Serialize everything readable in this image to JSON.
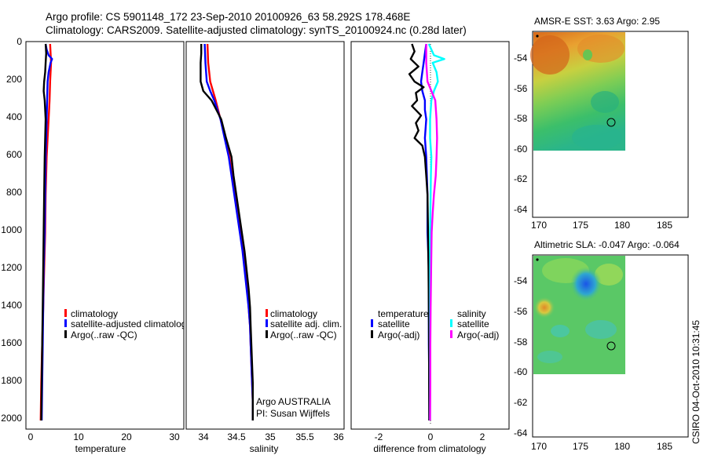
{
  "header": {
    "title_line1": "Argo profile: CS 5901148_172 23-Sep-2010 20100926_63 58.292S 178.468E",
    "title_line2": "Climatology: CARS2009. Satellite-adjusted climatology: synTS_20100924.nc (0.28d later)"
  },
  "colors": {
    "climatology": "#ff0000",
    "satellite": "#0000ff",
    "argo": "#000000",
    "sal_satellite": "#00ffff",
    "sal_argo": "#ff00ff"
  },
  "footer": {
    "stamp": "CSIRO 04-Oct-2010 10:31:45"
  },
  "chart_data": [
    {
      "id": "temperature",
      "type": "line",
      "xlabel": "temperature",
      "xlim": [
        -1,
        31
      ],
      "xticks": [
        0,
        10,
        20,
        30
      ],
      "ylim": [
        0,
        2000
      ],
      "yticks": [
        0,
        200,
        400,
        600,
        800,
        1000,
        1200,
        1400,
        1600,
        1800,
        2000
      ],
      "y_inverted": true,
      "legend": [
        {
          "label": "climatology",
          "color": "#ff0000"
        },
        {
          "label": "satellite-adjusted climatology",
          "color": "#0000ff"
        },
        {
          "label": "Argo(..raw -QC)",
          "color": "#000000"
        }
      ],
      "series": [
        {
          "name": "climatology",
          "color": "#ff0000",
          "depth": [
            0,
            50,
            100,
            150,
            200,
            300,
            400,
            500,
            600,
            800,
            1000,
            1200,
            1400,
            1600,
            1800,
            2000
          ],
          "values": [
            3.9,
            4.0,
            4.1,
            4.0,
            3.9,
            3.8,
            3.6,
            3.4,
            3.2,
            3.0,
            2.9,
            2.7,
            2.5,
            2.3,
            2.1,
            2.0
          ]
        },
        {
          "name": "satellite",
          "color": "#0000ff",
          "depth": [
            0,
            30,
            60,
            80,
            100,
            150,
            200,
            300,
            400,
            500,
            600,
            800,
            1000,
            1200,
            1400,
            1600,
            1800,
            2000
          ],
          "values": [
            3.0,
            3.2,
            3.6,
            4.3,
            4.0,
            3.6,
            3.4,
            3.3,
            3.2,
            3.1,
            3.0,
            2.9,
            2.8,
            2.6,
            2.5,
            2.4,
            2.3,
            2.2
          ]
        },
        {
          "name": "Argo",
          "color": "#000000",
          "depth": [
            0,
            50,
            100,
            150,
            200,
            250,
            300,
            400,
            500,
            600,
            800,
            1000,
            1200,
            1400,
            1600,
            1800,
            2000
          ],
          "values": [
            3.0,
            3.1,
            3.0,
            2.9,
            2.7,
            2.6,
            2.8,
            3.0,
            2.9,
            2.8,
            2.7,
            2.6,
            2.5,
            2.4,
            2.3,
            2.2,
            2.1
          ]
        }
      ]
    },
    {
      "id": "salinity",
      "type": "line",
      "xlabel": "salinity",
      "xlim": [
        33.75,
        36.05
      ],
      "xticks": [
        34,
        34.5,
        35,
        35.5,
        36
      ],
      "ylim": [
        0,
        2000
      ],
      "y_inverted": true,
      "legend": [
        {
          "label": "climatology",
          "color": "#ff0000"
        },
        {
          "label": "satellite adj. clim.",
          "color": "#0000ff"
        },
        {
          "label": "Argo(..raw -QC)",
          "color": "#000000"
        }
      ],
      "annotation": [
        "Argo AUSTRALIA",
        "PI: Susan Wijffels"
      ],
      "series": [
        {
          "name": "climatology",
          "color": "#ff0000",
          "depth": [
            0,
            100,
            200,
            250,
            300,
            400,
            500,
            600,
            700,
            800,
            900,
            1000,
            1100,
            1200,
            1300,
            1400,
            1500,
            1600,
            1700,
            1800,
            1900,
            2000
          ],
          "values": [
            34.06,
            34.07,
            34.1,
            34.14,
            34.18,
            34.25,
            34.32,
            34.38,
            34.42,
            34.46,
            34.5,
            34.54,
            34.58,
            34.61,
            34.64,
            34.66,
            34.68,
            34.69,
            34.7,
            34.71,
            34.72,
            34.72
          ]
        },
        {
          "name": "satellite",
          "color": "#0000ff",
          "depth": [
            0,
            100,
            200,
            250,
            300,
            400,
            500,
            600,
            700,
            800,
            900,
            1000,
            1100,
            1200,
            1300,
            1400,
            1500,
            1600,
            1700,
            1800,
            1900,
            2000
          ],
          "values": [
            34.02,
            34.03,
            34.05,
            34.1,
            34.16,
            34.25,
            34.31,
            34.37,
            34.41,
            34.45,
            34.49,
            34.53,
            34.57,
            34.6,
            34.63,
            34.66,
            34.68,
            34.69,
            34.7,
            34.71,
            34.72,
            34.72
          ]
        },
        {
          "name": "Argo",
          "color": "#000000",
          "depth": [
            0,
            50,
            100,
            150,
            200,
            250,
            300,
            400,
            500,
            600,
            700,
            800,
            900,
            1000,
            1100,
            1200,
            1300,
            1400,
            1500,
            1600,
            1700,
            1800,
            1900,
            2000
          ],
          "values": [
            33.97,
            33.97,
            33.96,
            33.96,
            33.96,
            34.0,
            34.12,
            34.26,
            34.33,
            34.41,
            34.44,
            34.48,
            34.52,
            34.56,
            34.6,
            34.63,
            34.66,
            34.68,
            34.69,
            34.7,
            34.71,
            34.72,
            34.72,
            34.72
          ]
        }
      ]
    },
    {
      "id": "difference",
      "type": "line",
      "xlabel": "difference from climatology",
      "xlim": [
        -3.05,
        3.05
      ],
      "xticks": [
        -2,
        0,
        2
      ],
      "ylim": [
        0,
        2000
      ],
      "y_inverted": true,
      "legend": [
        {
          "label": "temperature",
          "color": null
        },
        {
          "label": "satellite",
          "color": "#0000ff"
        },
        {
          "label": "Argo(-adj)",
          "color": "#000000"
        },
        {
          "label": "salinity",
          "color": null
        },
        {
          "label": "satellite",
          "color": "#00ffff"
        },
        {
          "label": "Argo(-adj)",
          "color": "#ff00ff"
        }
      ],
      "series": [
        {
          "name": "temperature satellite",
          "color": "#0000ff",
          "depth": [
            0,
            50,
            100,
            150,
            200,
            250,
            300,
            350,
            400,
            500,
            600,
            800,
            1000,
            1200,
            1400,
            1600,
            1800,
            2000
          ],
          "values": [
            -0.15,
            -0.2,
            -0.25,
            -0.3,
            -0.35,
            -0.3,
            -0.2,
            -0.2,
            -0.15,
            -0.2,
            -0.15,
            -0.1,
            -0.1,
            -0.05,
            -0.05,
            -0.05,
            -0.03,
            -0.03
          ]
        },
        {
          "name": "temperature Argo",
          "color": "#000000",
          "depth": [
            0,
            40,
            80,
            120,
            160,
            200,
            230,
            260,
            300,
            330,
            380,
            420,
            460,
            500,
            540,
            600,
            700,
            800,
            1000,
            1200,
            1400,
            1600,
            1800,
            2000
          ],
          "values": [
            -0.7,
            -0.6,
            -0.75,
            -0.45,
            -0.8,
            -0.6,
            -0.25,
            -0.55,
            -0.5,
            -0.7,
            -0.35,
            -0.55,
            -0.45,
            -0.6,
            -0.3,
            -0.2,
            -0.15,
            -0.1,
            -0.08,
            -0.06,
            -0.05,
            -0.04,
            -0.04,
            -0.03
          ]
        },
        {
          "name": "salinity satellite",
          "color": "#00ffff",
          "depth": [
            0,
            60,
            80,
            100,
            150,
            200,
            250,
            300,
            400,
            500,
            600,
            700,
            800,
            1000,
            1200,
            1400,
            1600,
            1800,
            2000
          ],
          "values": [
            -0.05,
            0.15,
            0.55,
            0.1,
            0.25,
            0.3,
            0.15,
            0.05,
            0.0,
            0.0,
            0.05,
            0.03,
            0.02,
            0.0,
            0.0,
            0.0,
            0.0,
            0.0,
            0.0
          ]
        },
        {
          "name": "salinity Argo",
          "color": "#ff00ff",
          "depth": [
            0,
            100,
            200,
            300,
            400,
            500,
            600,
            700,
            800,
            900,
            1000,
            1200,
            1400,
            1600,
            1800,
            2000
          ],
          "values": [
            -0.15,
            -0.15,
            -0.1,
            0.2,
            0.25,
            0.27,
            0.25,
            0.22,
            0.15,
            0.1,
            0.06,
            0.04,
            0.02,
            0.01,
            0.01,
            0.0
          ]
        }
      ]
    },
    {
      "id": "sst_map",
      "type": "heatmap",
      "title": "AMSR-E SST: 3.63 Argo: 2.95",
      "xlim": [
        168.5,
        188.5
      ],
      "xticks": [
        170,
        175,
        180,
        185
      ],
      "ylim": [
        -64.5,
        -52.5
      ],
      "yticks": [
        -54,
        -56,
        -58,
        -60,
        -62,
        -64
      ],
      "data_region": {
        "lon": [
          169,
          180
        ],
        "lat": [
          -60,
          -53
        ]
      },
      "float_position": {
        "lon": 178.468,
        "lat": -58.292
      }
    },
    {
      "id": "sla_map",
      "type": "heatmap",
      "title": "Altimetric SLA: -0.047 Argo: -0.064",
      "xlim": [
        168.5,
        188.5
      ],
      "xticks": [
        170,
        175,
        180,
        185
      ],
      "ylim": [
        -64.5,
        -52.5
      ],
      "yticks": [
        -54,
        -56,
        -58,
        -60,
        -62,
        -64
      ],
      "data_region": {
        "lon": [
          169,
          180
        ],
        "lat": [
          -60,
          -53
        ]
      },
      "float_position": {
        "lon": 178.468,
        "lat": -58.292
      }
    }
  ]
}
